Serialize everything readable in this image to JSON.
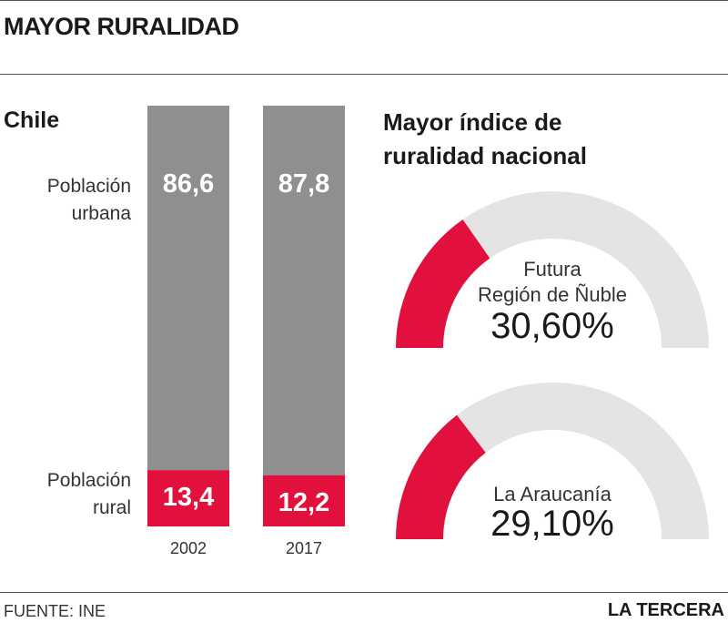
{
  "title": "MAYOR RURALIDAD",
  "left_panel": {
    "label": "Chile",
    "row_labels": {
      "urban": [
        "Población",
        "urbana"
      ],
      "rural": [
        "Población",
        "rural"
      ]
    }
  },
  "right_panel": {
    "title_lines": [
      "Mayor índice de",
      "ruralidad nacional"
    ]
  },
  "footer": {
    "source": "FUENTE: INE",
    "publisher": "LA TERCERA"
  },
  "colors": {
    "urban": "#8f8f8f",
    "rural": "#e2103c",
    "gauge_track": "#e4e4e4"
  },
  "chart_data": [
    {
      "type": "bar",
      "stacked": true,
      "categories": [
        "2002",
        "2017"
      ],
      "series": [
        {
          "name": "Población urbana",
          "values": [
            86.6,
            87.8
          ],
          "labels": [
            "86,6",
            "87,8"
          ]
        },
        {
          "name": "Población rural",
          "values": [
            13.4,
            12.2
          ],
          "labels": [
            "13,4",
            "12,2"
          ]
        }
      ],
      "ylim": [
        0,
        100
      ]
    },
    {
      "type": "gauge",
      "title": "Mayor índice de ruralidad nacional",
      "items": [
        {
          "name_lines": [
            "Futura",
            "Región de Ñuble"
          ],
          "value": 30.6,
          "label": "30,60%"
        },
        {
          "name_lines": [
            "La Araucanía"
          ],
          "value": 29.1,
          "label": "29,10%"
        }
      ],
      "range": [
        0,
        100
      ]
    }
  ]
}
